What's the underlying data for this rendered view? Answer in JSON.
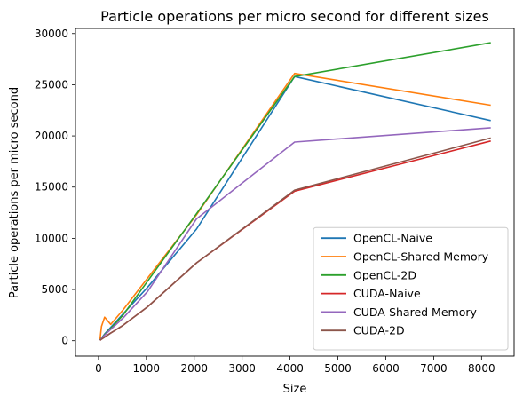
{
  "chart_data": {
    "type": "line",
    "title": "Particle operations per micro second for different sizes",
    "xlabel": "Size",
    "ylabel": "Particle operations per micro second",
    "xlim": [
      -480,
      8680
    ],
    "ylim": [
      -1500,
      30500
    ],
    "xticks": [
      0,
      1000,
      2000,
      3000,
      4000,
      5000,
      6000,
      7000,
      8000
    ],
    "xtick_labels": [
      "0",
      "1000",
      "2000",
      "3000",
      "4000",
      "5000",
      "6000",
      "7000",
      "8000"
    ],
    "yticks": [
      0,
      5000,
      10000,
      15000,
      20000,
      25000,
      30000
    ],
    "ytick_labels": [
      "0",
      "5000",
      "10000",
      "15000",
      "20000",
      "25000",
      "30000"
    ],
    "grid": false,
    "legend_position": "lower-right",
    "series": [
      {
        "name": "OpenCL-Naive",
        "color": "#1f77b4",
        "x": [
          32,
          64,
          128,
          256,
          512,
          1024,
          2048,
          4096,
          8192
        ],
        "y": [
          50,
          250,
          650,
          1300,
          2600,
          5200,
          10900,
          25800,
          21500
        ]
      },
      {
        "name": "OpenCL-Shared Memory",
        "color": "#ff7f0e",
        "x": [
          32,
          64,
          128,
          256,
          512,
          1024,
          2048,
          4096,
          8192
        ],
        "y": [
          100,
          1400,
          2300,
          1600,
          3000,
          6100,
          12300,
          26100,
          23000
        ]
      },
      {
        "name": "OpenCL-2D",
        "color": "#2ca02c",
        "x": [
          32,
          64,
          128,
          256,
          512,
          1024,
          2048,
          4096,
          8192
        ],
        "y": [
          50,
          250,
          600,
          1200,
          2500,
          5800,
          12400,
          25800,
          29100
        ]
      },
      {
        "name": "CUDA-Naive",
        "color": "#d62728",
        "x": [
          32,
          64,
          128,
          256,
          512,
          1024,
          2048,
          4096,
          8192
        ],
        "y": [
          40,
          150,
          350,
          750,
          1500,
          3300,
          7600,
          14600,
          19500
        ]
      },
      {
        "name": "CUDA-Shared Memory",
        "color": "#9467bd",
        "x": [
          32,
          64,
          128,
          256,
          512,
          1024,
          2048,
          4096,
          8192
        ],
        "y": [
          50,
          230,
          550,
          1100,
          2200,
          4800,
          11900,
          19400,
          20800
        ]
      },
      {
        "name": "CUDA-2D",
        "color": "#8c564b",
        "x": [
          32,
          64,
          128,
          256,
          512,
          1024,
          2048,
          4096,
          8192
        ],
        "y": [
          40,
          150,
          350,
          750,
          1500,
          3300,
          7600,
          14700,
          19800
        ]
      }
    ]
  }
}
